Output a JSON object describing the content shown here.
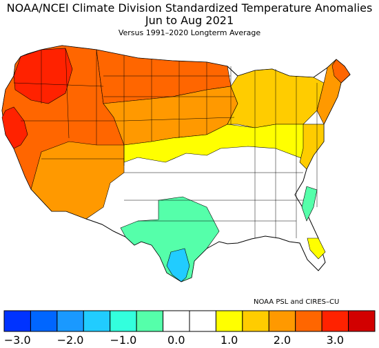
{
  "title": "NOAA/NCEI Climate Division Standardized Temperature Anomalies",
  "period": "Jun to Aug 2021",
  "baseline": "Versus 1991–2020 Longterm Average",
  "credit": "NOAA PSL and CIRES–CU",
  "legend": {
    "ticks": [
      "−3.0",
      "−2.0",
      "−1.0",
      "0.0",
      "1.0",
      "2.0",
      "3.0"
    ],
    "bins": [
      {
        "range": "−3.0 to −2.5",
        "color": "#0033ff"
      },
      {
        "range": "−2.5 to −2.0",
        "color": "#0066ff"
      },
      {
        "range": "−2.0 to −1.5",
        "color": "#1a99ff"
      },
      {
        "range": "−1.5 to −1.0",
        "color": "#21ccff"
      },
      {
        "range": "−1.0 to −0.5",
        "color": "#33ffdd"
      },
      {
        "range": "−0.5 to 0.0 (lower)",
        "color": "#55ffaa"
      },
      {
        "range": "−0.5 to 0.0",
        "color": "#ffffff"
      },
      {
        "range": "0.0 to 0.5",
        "color": "#ffffff"
      },
      {
        "range": "0.5 to 1.0",
        "color": "#ffff00"
      },
      {
        "range": "1.0 to 1.5",
        "color": "#ffcc00"
      },
      {
        "range": "1.5 to 2.0",
        "color": "#ff9900"
      },
      {
        "range": "2.0 to 2.5",
        "color": "#ff6600"
      },
      {
        "range": "2.5 to 3.0",
        "color": "#ff2200"
      },
      {
        "range": "> 3.0",
        "color": "#d20000"
      }
    ]
  },
  "regions": [
    {
      "name": "pacific-northwest",
      "color": "#ff2200"
    },
    {
      "name": "california-coast",
      "color": "#ff2200"
    },
    {
      "name": "west",
      "color": "#ff6600"
    },
    {
      "name": "southwest",
      "color": "#ff9900"
    },
    {
      "name": "northern-plains",
      "color": "#ff6600"
    },
    {
      "name": "central-plains-north",
      "color": "#ff9900"
    },
    {
      "name": "great-lakes",
      "color": "#ffcc00"
    },
    {
      "name": "new-england",
      "color": "#ff9900"
    },
    {
      "name": "maine-north",
      "color": "#ff6600"
    },
    {
      "name": "mid-atlantic",
      "color": "#ffcc00"
    },
    {
      "name": "ohio-valley",
      "color": "#ffff00"
    },
    {
      "name": "central-plains-south",
      "color": "#ffffff"
    },
    {
      "name": "southeast",
      "color": "#ffffff"
    },
    {
      "name": "texas",
      "color": "#55ffaa"
    },
    {
      "name": "south-texas",
      "color": "#21ccff"
    },
    {
      "name": "carolina-coast",
      "color": "#55ffaa"
    },
    {
      "name": "florida",
      "color": "#ffff00"
    }
  ]
}
